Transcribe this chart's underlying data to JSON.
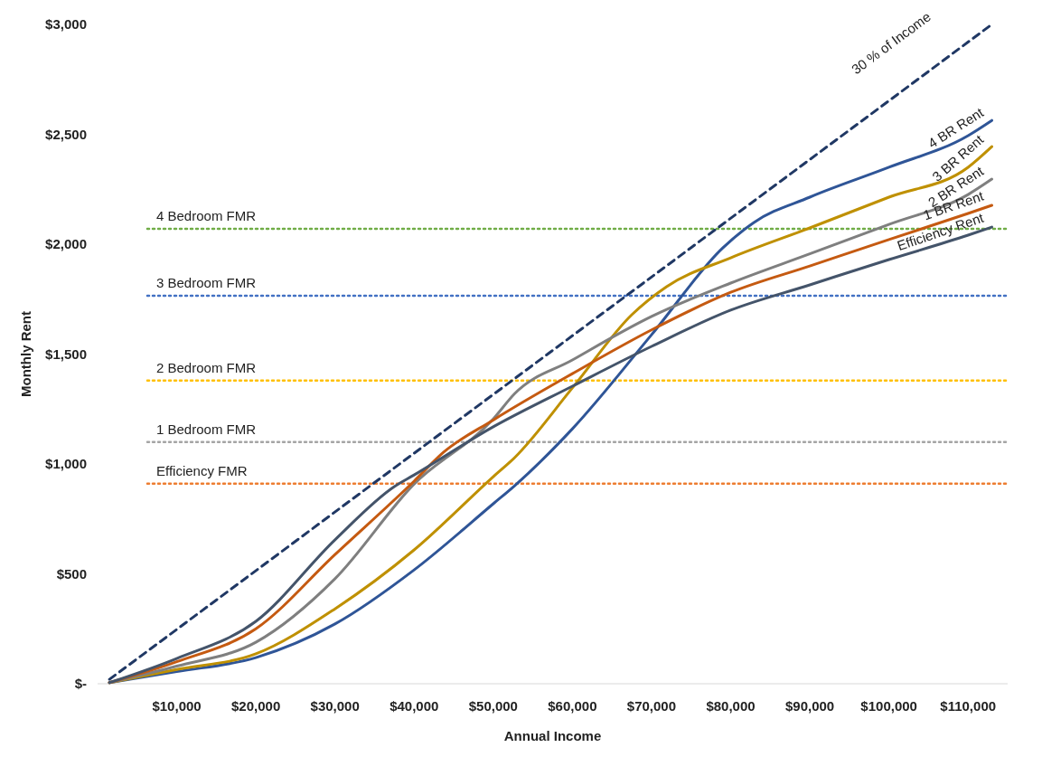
{
  "chart_data": {
    "type": "line",
    "xlabel": "Annual Income",
    "ylabel": "Monthly Rent",
    "xlim": [
      0,
      115000
    ],
    "ylim": [
      0,
      3000
    ],
    "xticks": [
      {
        "value": 10000,
        "label": "$10,000"
      },
      {
        "value": 20000,
        "label": "$20,000"
      },
      {
        "value": 30000,
        "label": "$30,000"
      },
      {
        "value": 40000,
        "label": "$40,000"
      },
      {
        "value": 50000,
        "label": "$50,000"
      },
      {
        "value": 60000,
        "label": "$60,000"
      },
      {
        "value": 70000,
        "label": "$70,000"
      },
      {
        "value": 80000,
        "label": "$80,000"
      },
      {
        "value": 90000,
        "label": "$90,000"
      },
      {
        "value": 100000,
        "label": "$100,000"
      },
      {
        "value": 110000,
        "label": "$110,000"
      }
    ],
    "yticks": [
      {
        "value": 0,
        "label": "$-"
      },
      {
        "value": 500,
        "label": "$500"
      },
      {
        "value": 1000,
        "label": "$1,000"
      },
      {
        "value": 1500,
        "label": "$1,500"
      },
      {
        "value": 2000,
        "label": "$2,000"
      },
      {
        "value": 2500,
        "label": "$2,500"
      },
      {
        "value": 3000,
        "label": "$3,000"
      }
    ],
    "grid": false,
    "marker": "none",
    "series": [
      {
        "name": "30 % of Income",
        "color": "#203864",
        "line_style": "dashed",
        "x": [
          1500,
          113000
        ],
        "values": [
          20,
          3000
        ]
      },
      {
        "name": "4 BR Rent",
        "color": "#2f5597",
        "x": [
          1500,
          10000,
          20000,
          30000,
          40000,
          50000,
          52700,
          60000,
          70000,
          79000,
          82900,
          90000,
          100000,
          110000,
          113000
        ],
        "values": [
          5,
          55,
          119,
          272,
          518,
          819,
          901,
          1160,
          1588,
          1983,
          2098,
          2214,
          2350,
          2494,
          2563
        ]
      },
      {
        "name": "3 BR Rent",
        "color": "#bf9000",
        "x": [
          1500,
          10000,
          20000,
          30000,
          40000,
          50000,
          52700,
          60000,
          67500,
          71900,
          80000,
          90000,
          100000,
          110000,
          113000
        ],
        "values": [
          5,
          65,
          136,
          341,
          609,
          942,
          1029,
          1346,
          1679,
          1807,
          1938,
          2074,
          2214,
          2350,
          2444
        ]
      },
      {
        "name": "2 BR Rent",
        "color": "#7f7f7f",
        "x": [
          1500,
          10000,
          20000,
          30000,
          40000,
          50000,
          52700,
          60000,
          70000,
          80000,
          90000,
          100000,
          110000,
          113000
        ],
        "values": [
          5,
          80,
          189,
          478,
          909,
          1205,
          1320,
          1473,
          1671,
          1823,
          1956,
          2090,
          2226,
          2296
        ]
      },
      {
        "name": "1 BR Rent",
        "color": "#c55a11",
        "x": [
          1500,
          10000,
          20000,
          30000,
          40000,
          43700,
          50000,
          60000,
          70000,
          80000,
          90000,
          100000,
          110000,
          113000
        ],
        "values": [
          5,
          100,
          250,
          588,
          922,
          1053,
          1200,
          1411,
          1610,
          1781,
          1901,
          2021,
          2140,
          2177
        ]
      },
      {
        "name": "Efficiency Rent",
        "color": "#44546a",
        "x": [
          1500,
          10000,
          20000,
          30000,
          37500,
          40000,
          50000,
          60000,
          70000,
          80000,
          90000,
          100000,
          110000,
          113000
        ],
        "values": [
          5,
          115,
          284,
          655,
          897,
          950,
          1169,
          1354,
          1535,
          1700,
          1815,
          1930,
          2041,
          2078
        ]
      }
    ],
    "ref_lines": [
      {
        "axis": "y",
        "value": 2070,
        "label": "4 Bedroom FMR",
        "color": "#70ad47",
        "line_style": "dotted"
      },
      {
        "axis": "y",
        "value": 1765,
        "label": "3 Bedroom FMR",
        "color": "#4472c4",
        "line_style": "dotted"
      },
      {
        "axis": "y",
        "value": 1380,
        "label": "2 Bedroom FMR",
        "color": "#ffc000",
        "line_style": "dotted"
      },
      {
        "axis": "y",
        "value": 1100,
        "label": "1 Bedroom FMR",
        "color": "#a5a5a5",
        "line_style": "dotted"
      },
      {
        "axis": "y",
        "value": 910,
        "label": "Efficiency FMR",
        "color": "#ed7d31",
        "line_style": "dotted"
      }
    ]
  }
}
